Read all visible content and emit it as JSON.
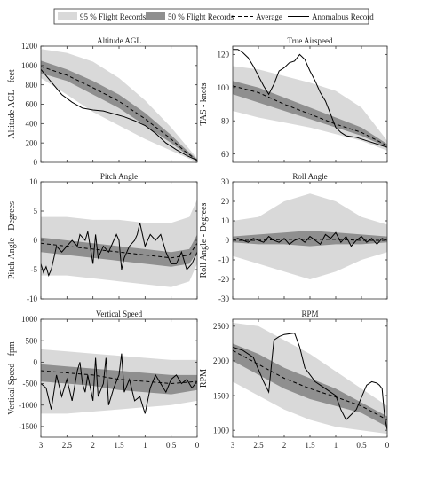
{
  "legend": {
    "items": [
      {
        "label": "95 % Flight Records",
        "kind": "band95"
      },
      {
        "label": "50 % Flight Records",
        "kind": "band50"
      },
      {
        "label": "Average",
        "kind": "dashed"
      },
      {
        "label": "Anomalous Record",
        "kind": "solid"
      }
    ]
  },
  "colors": {
    "band95": "#d9d9d9",
    "band50": "#8f8f8f",
    "line": "#000000",
    "axes": "#333333"
  },
  "chart_data": [
    {
      "type": "line",
      "title": "Altitude AGL",
      "ylabel": "Altitude AGL - feet",
      "xlim": [
        3,
        0
      ],
      "ylim": [
        0,
        1200
      ],
      "yticks": [
        0,
        200,
        400,
        600,
        800,
        1000,
        1200
      ],
      "xticks": [
        3,
        2.5,
        2,
        1.5,
        1,
        0.5,
        0
      ],
      "show_xtick_labels": false,
      "x": [
        3,
        2.5,
        2,
        1.5,
        1,
        0.5,
        0.25,
        0
      ],
      "band95_upper": [
        1170,
        1130,
        1040,
        870,
        640,
        360,
        200,
        40
      ],
      "band95_lower": [
        870,
        700,
        520,
        380,
        240,
        120,
        60,
        0
      ],
      "band50_upper": [
        1050,
        960,
        840,
        700,
        510,
        280,
        150,
        30
      ],
      "band50_lower": [
        920,
        840,
        700,
        560,
        380,
        200,
        100,
        15
      ],
      "average": [
        990,
        900,
        770,
        630,
        450,
        240,
        120,
        20
      ],
      "anomalous": {
        "x": [
          3,
          2.8,
          2.6,
          2.4,
          2.2,
          2.0,
          1.8,
          1.6,
          1.4,
          1.2,
          1.0,
          0.8,
          0.6,
          0.4,
          0.2,
          0
        ],
        "y": [
          960,
          830,
          700,
          620,
          560,
          540,
          530,
          500,
          470,
          430,
          380,
          300,
          200,
          130,
          70,
          20
        ]
      }
    },
    {
      "type": "line",
      "title": "True Airspeed",
      "ylabel": "TAS - knots",
      "xlim": [
        3,
        0
      ],
      "ylim": [
        55,
        125
      ],
      "yticks": [
        60,
        80,
        100,
        120
      ],
      "xticks": [
        3,
        2.5,
        2,
        1.5,
        1,
        0.5,
        0
      ],
      "show_xtick_labels": false,
      "x": [
        3,
        2.5,
        2,
        1.5,
        1,
        0.5,
        0
      ],
      "band95_upper": [
        113,
        111,
        107,
        103,
        98,
        88,
        68
      ],
      "band95_lower": [
        86,
        82,
        79,
        76,
        72,
        68,
        62
      ],
      "band50_upper": [
        104,
        100,
        94,
        88,
        82,
        76,
        66
      ],
      "band50_lower": [
        96,
        91,
        86,
        81,
        76,
        71,
        64
      ],
      "average": [
        101,
        97,
        90,
        84,
        78,
        73,
        65
      ],
      "anomalous": {
        "x": [
          3,
          2.9,
          2.8,
          2.7,
          2.6,
          2.5,
          2.4,
          2.3,
          2.2,
          2.1,
          2.0,
          1.9,
          1.8,
          1.7,
          1.6,
          1.5,
          1.4,
          1.3,
          1.2,
          1.1,
          1.0,
          0.9,
          0.8,
          0.6,
          0.4,
          0.2,
          0
        ],
        "y": [
          123,
          123,
          121,
          118,
          113,
          107,
          101,
          96,
          102,
          110,
          112,
          115,
          116,
          120,
          117,
          110,
          104,
          97,
          92,
          84,
          76,
          73,
          71,
          70,
          68,
          66,
          64
        ]
      }
    },
    {
      "type": "line",
      "title": "Pitch Angle",
      "ylabel": "Pitch Angle - Degrees",
      "xlim": [
        3,
        0
      ],
      "ylim": [
        -10,
        10
      ],
      "yticks": [
        -10,
        -5,
        0,
        5,
        10
      ],
      "xticks": [
        3,
        2.5,
        2,
        1.5,
        1,
        0.5,
        0
      ],
      "show_xtick_labels": false,
      "x": [
        3,
        2.5,
        2,
        1.5,
        1,
        0.5,
        0.15,
        0
      ],
      "band95_upper": [
        4,
        4,
        3.5,
        3.5,
        3,
        3,
        4,
        7
      ],
      "band95_lower": [
        -6,
        -6,
        -6.5,
        -7,
        -7.5,
        -8,
        -7,
        -4
      ],
      "band50_upper": [
        0.5,
        0,
        -0.5,
        -1,
        -1.5,
        -2,
        -1.5,
        1
      ],
      "band50_lower": [
        -2,
        -2.5,
        -3,
        -3.5,
        -4,
        -4.5,
        -4,
        -2
      ],
      "average": [
        -0.5,
        -1,
        -1.5,
        -2,
        -2.5,
        -3,
        -2.5,
        -0.5
      ],
      "anomalous": {
        "x": [
          3,
          2.95,
          2.9,
          2.85,
          2.8,
          2.75,
          2.7,
          2.6,
          2.5,
          2.4,
          2.3,
          2.25,
          2.2,
          2.15,
          2.1,
          2.0,
          1.95,
          1.9,
          1.8,
          1.7,
          1.6,
          1.55,
          1.5,
          1.45,
          1.4,
          1.3,
          1.2,
          1.15,
          1.1,
          1.0,
          0.9,
          0.8,
          0.7,
          0.6,
          0.5,
          0.4,
          0.3,
          0.2,
          0.1,
          0
        ],
        "y": [
          -4,
          -5.5,
          -4.5,
          -6,
          -5,
          -3,
          -1,
          -2,
          -1,
          0,
          -1,
          1,
          0.5,
          0,
          1.5,
          -4,
          1,
          -3,
          -1,
          -2,
          0,
          1,
          0,
          -5,
          -3,
          -1,
          0,
          1,
          3,
          -1,
          1,
          0,
          1,
          -2,
          -4,
          -4,
          -2,
          -5,
          -4,
          -2
        ]
      }
    },
    {
      "type": "line",
      "title": "Roll Angle",
      "ylabel": "Roll Angle - Degrees",
      "xlim": [
        3,
        0
      ],
      "ylim": [
        -30,
        30
      ],
      "yticks": [
        -30,
        -20,
        -10,
        0,
        10,
        20,
        30
      ],
      "xticks": [
        3,
        2.5,
        2,
        1.5,
        1,
        0.5,
        0
      ],
      "show_xtick_labels": false,
      "x": [
        3,
        2.5,
        2,
        1.5,
        1,
        0.5,
        0
      ],
      "band95_upper": [
        10,
        12,
        20,
        24,
        20,
        12,
        8
      ],
      "band95_lower": [
        -8,
        -12,
        -16,
        -20,
        -16,
        -10,
        -6
      ],
      "band50_upper": [
        2,
        3,
        4,
        5,
        4,
        3,
        2
      ],
      "band50_lower": [
        -1,
        -2,
        -2,
        -3,
        -2,
        -2,
        -1
      ],
      "average": [
        0,
        0,
        0.5,
        0.5,
        0.5,
        0,
        0
      ],
      "anomalous": {
        "x": [
          3,
          2.9,
          2.8,
          2.7,
          2.6,
          2.5,
          2.4,
          2.3,
          2.2,
          2.1,
          2.0,
          1.9,
          1.8,
          1.7,
          1.6,
          1.5,
          1.4,
          1.3,
          1.2,
          1.1,
          1.0,
          0.9,
          0.8,
          0.7,
          0.6,
          0.5,
          0.4,
          0.3,
          0.2,
          0.1,
          0
        ],
        "y": [
          0,
          1,
          0,
          -1,
          1,
          0,
          -1,
          2,
          0,
          -1,
          1,
          -2,
          0,
          1,
          -1,
          2,
          0,
          -2,
          3,
          1,
          4,
          -1,
          2,
          -3,
          0,
          2,
          -1,
          1,
          -2,
          1,
          0
        ]
      }
    },
    {
      "type": "line",
      "title": "Vertical Speed",
      "ylabel": "Vertical Speed - fpm",
      "xlim": [
        3,
        0
      ],
      "ylim": [
        -1750,
        1000
      ],
      "yticks": [
        -1500,
        -1000,
        -500,
        0,
        500,
        1000
      ],
      "xticks": [
        3,
        2.5,
        2,
        1.5,
        1,
        0.5,
        0
      ],
      "show_xtick_labels": true,
      "x": [
        3,
        2.5,
        2,
        1.5,
        1,
        0.5,
        0
      ],
      "band95_upper": [
        300,
        250,
        200,
        150,
        100,
        50,
        50
      ],
      "band95_lower": [
        -1200,
        -1200,
        -1150,
        -1100,
        -1050,
        -1000,
        -900
      ],
      "band50_upper": [
        -50,
        -100,
        -150,
        -200,
        -250,
        -300,
        -300
      ],
      "band50_lower": [
        -450,
        -500,
        -550,
        -650,
        -700,
        -750,
        -650
      ],
      "average": [
        -200,
        -250,
        -300,
        -400,
        -450,
        -500,
        -450
      ],
      "anomalous": {
        "x": [
          3,
          2.9,
          2.8,
          2.75,
          2.7,
          2.6,
          2.5,
          2.4,
          2.3,
          2.25,
          2.2,
          2.15,
          2.1,
          2.0,
          1.95,
          1.9,
          1.8,
          1.75,
          1.7,
          1.6,
          1.5,
          1.45,
          1.4,
          1.3,
          1.2,
          1.1,
          1.0,
          0.9,
          0.8,
          0.7,
          0.6,
          0.5,
          0.4,
          0.3,
          0.2,
          0.1,
          0
        ],
        "y": [
          -500,
          -600,
          -1100,
          -700,
          -300,
          -800,
          -400,
          -900,
          -200,
          0,
          -500,
          -700,
          -300,
          -900,
          100,
          -800,
          -500,
          100,
          -1000,
          -600,
          -300,
          200,
          -700,
          -400,
          -900,
          -800,
          -1200,
          -600,
          -300,
          -500,
          -700,
          -400,
          -300,
          -500,
          -400,
          -600,
          -450
        ]
      }
    },
    {
      "type": "line",
      "title": "RPM",
      "ylabel": "RPM",
      "xlim": [
        3,
        0
      ],
      "ylim": [
        900,
        2600
      ],
      "yticks": [
        1000,
        1500,
        2000,
        2500
      ],
      "xticks": [
        3,
        2.5,
        2,
        1.5,
        1,
        0.5,
        0
      ],
      "show_xtick_labels": true,
      "x": [
        3,
        2.5,
        2,
        1.5,
        1,
        0.5,
        0
      ],
      "band95_upper": [
        2550,
        2500,
        2300,
        2100,
        1850,
        1600,
        1350
      ],
      "band95_lower": [
        1700,
        1500,
        1300,
        1150,
        1050,
        1000,
        950
      ],
      "band50_upper": [
        2250,
        2100,
        1900,
        1750,
        1600,
        1400,
        1200
      ],
      "band50_lower": [
        2000,
        1800,
        1600,
        1450,
        1350,
        1250,
        1050
      ],
      "average": [
        2150,
        1950,
        1750,
        1600,
        1480,
        1350,
        1150
      ],
      "anomalous": {
        "x": [
          3,
          2.8,
          2.6,
          2.4,
          2.3,
          2.2,
          2.1,
          2.0,
          1.8,
          1.7,
          1.6,
          1.4,
          1.2,
          1.0,
          0.9,
          0.8,
          0.6,
          0.4,
          0.3,
          0.2,
          0.15,
          0.1,
          0.05,
          0
        ],
        "y": [
          2200,
          2150,
          2050,
          1700,
          1550,
          2300,
          2350,
          2380,
          2400,
          2200,
          1900,
          1700,
          1600,
          1500,
          1300,
          1150,
          1300,
          1650,
          1700,
          1680,
          1650,
          1600,
          1200,
          1000
        ]
      }
    }
  ]
}
